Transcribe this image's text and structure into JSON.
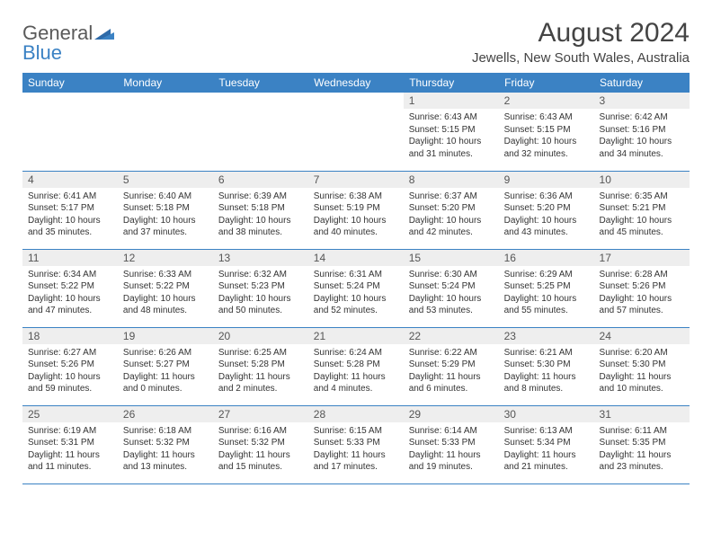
{
  "logo": {
    "line1": "General",
    "line2": "Blue"
  },
  "title": "August 2024",
  "location": "Jewells, New South Wales, Australia",
  "colors": {
    "accent": "#3b82c4",
    "header_bg": "#3b82c4",
    "header_text": "#ffffff",
    "daynum_bg": "#eeeeee",
    "text": "#333333",
    "logo_gray": "#5a5a5a"
  },
  "day_headers": [
    "Sunday",
    "Monday",
    "Tuesday",
    "Wednesday",
    "Thursday",
    "Friday",
    "Saturday"
  ],
  "weeks": [
    [
      {
        "n": "",
        "sr": "",
        "ss": "",
        "dl": ""
      },
      {
        "n": "",
        "sr": "",
        "ss": "",
        "dl": ""
      },
      {
        "n": "",
        "sr": "",
        "ss": "",
        "dl": ""
      },
      {
        "n": "",
        "sr": "",
        "ss": "",
        "dl": ""
      },
      {
        "n": "1",
        "sr": "Sunrise: 6:43 AM",
        "ss": "Sunset: 5:15 PM",
        "dl": "Daylight: 10 hours and 31 minutes."
      },
      {
        "n": "2",
        "sr": "Sunrise: 6:43 AM",
        "ss": "Sunset: 5:15 PM",
        "dl": "Daylight: 10 hours and 32 minutes."
      },
      {
        "n": "3",
        "sr": "Sunrise: 6:42 AM",
        "ss": "Sunset: 5:16 PM",
        "dl": "Daylight: 10 hours and 34 minutes."
      }
    ],
    [
      {
        "n": "4",
        "sr": "Sunrise: 6:41 AM",
        "ss": "Sunset: 5:17 PM",
        "dl": "Daylight: 10 hours and 35 minutes."
      },
      {
        "n": "5",
        "sr": "Sunrise: 6:40 AM",
        "ss": "Sunset: 5:18 PM",
        "dl": "Daylight: 10 hours and 37 minutes."
      },
      {
        "n": "6",
        "sr": "Sunrise: 6:39 AM",
        "ss": "Sunset: 5:18 PM",
        "dl": "Daylight: 10 hours and 38 minutes."
      },
      {
        "n": "7",
        "sr": "Sunrise: 6:38 AM",
        "ss": "Sunset: 5:19 PM",
        "dl": "Daylight: 10 hours and 40 minutes."
      },
      {
        "n": "8",
        "sr": "Sunrise: 6:37 AM",
        "ss": "Sunset: 5:20 PM",
        "dl": "Daylight: 10 hours and 42 minutes."
      },
      {
        "n": "9",
        "sr": "Sunrise: 6:36 AM",
        "ss": "Sunset: 5:20 PM",
        "dl": "Daylight: 10 hours and 43 minutes."
      },
      {
        "n": "10",
        "sr": "Sunrise: 6:35 AM",
        "ss": "Sunset: 5:21 PM",
        "dl": "Daylight: 10 hours and 45 minutes."
      }
    ],
    [
      {
        "n": "11",
        "sr": "Sunrise: 6:34 AM",
        "ss": "Sunset: 5:22 PM",
        "dl": "Daylight: 10 hours and 47 minutes."
      },
      {
        "n": "12",
        "sr": "Sunrise: 6:33 AM",
        "ss": "Sunset: 5:22 PM",
        "dl": "Daylight: 10 hours and 48 minutes."
      },
      {
        "n": "13",
        "sr": "Sunrise: 6:32 AM",
        "ss": "Sunset: 5:23 PM",
        "dl": "Daylight: 10 hours and 50 minutes."
      },
      {
        "n": "14",
        "sr": "Sunrise: 6:31 AM",
        "ss": "Sunset: 5:24 PM",
        "dl": "Daylight: 10 hours and 52 minutes."
      },
      {
        "n": "15",
        "sr": "Sunrise: 6:30 AM",
        "ss": "Sunset: 5:24 PM",
        "dl": "Daylight: 10 hours and 53 minutes."
      },
      {
        "n": "16",
        "sr": "Sunrise: 6:29 AM",
        "ss": "Sunset: 5:25 PM",
        "dl": "Daylight: 10 hours and 55 minutes."
      },
      {
        "n": "17",
        "sr": "Sunrise: 6:28 AM",
        "ss": "Sunset: 5:26 PM",
        "dl": "Daylight: 10 hours and 57 minutes."
      }
    ],
    [
      {
        "n": "18",
        "sr": "Sunrise: 6:27 AM",
        "ss": "Sunset: 5:26 PM",
        "dl": "Daylight: 10 hours and 59 minutes."
      },
      {
        "n": "19",
        "sr": "Sunrise: 6:26 AM",
        "ss": "Sunset: 5:27 PM",
        "dl": "Daylight: 11 hours and 0 minutes."
      },
      {
        "n": "20",
        "sr": "Sunrise: 6:25 AM",
        "ss": "Sunset: 5:28 PM",
        "dl": "Daylight: 11 hours and 2 minutes."
      },
      {
        "n": "21",
        "sr": "Sunrise: 6:24 AM",
        "ss": "Sunset: 5:28 PM",
        "dl": "Daylight: 11 hours and 4 minutes."
      },
      {
        "n": "22",
        "sr": "Sunrise: 6:22 AM",
        "ss": "Sunset: 5:29 PM",
        "dl": "Daylight: 11 hours and 6 minutes."
      },
      {
        "n": "23",
        "sr": "Sunrise: 6:21 AM",
        "ss": "Sunset: 5:30 PM",
        "dl": "Daylight: 11 hours and 8 minutes."
      },
      {
        "n": "24",
        "sr": "Sunrise: 6:20 AM",
        "ss": "Sunset: 5:30 PM",
        "dl": "Daylight: 11 hours and 10 minutes."
      }
    ],
    [
      {
        "n": "25",
        "sr": "Sunrise: 6:19 AM",
        "ss": "Sunset: 5:31 PM",
        "dl": "Daylight: 11 hours and 11 minutes."
      },
      {
        "n": "26",
        "sr": "Sunrise: 6:18 AM",
        "ss": "Sunset: 5:32 PM",
        "dl": "Daylight: 11 hours and 13 minutes."
      },
      {
        "n": "27",
        "sr": "Sunrise: 6:16 AM",
        "ss": "Sunset: 5:32 PM",
        "dl": "Daylight: 11 hours and 15 minutes."
      },
      {
        "n": "28",
        "sr": "Sunrise: 6:15 AM",
        "ss": "Sunset: 5:33 PM",
        "dl": "Daylight: 11 hours and 17 minutes."
      },
      {
        "n": "29",
        "sr": "Sunrise: 6:14 AM",
        "ss": "Sunset: 5:33 PM",
        "dl": "Daylight: 11 hours and 19 minutes."
      },
      {
        "n": "30",
        "sr": "Sunrise: 6:13 AM",
        "ss": "Sunset: 5:34 PM",
        "dl": "Daylight: 11 hours and 21 minutes."
      },
      {
        "n": "31",
        "sr": "Sunrise: 6:11 AM",
        "ss": "Sunset: 5:35 PM",
        "dl": "Daylight: 11 hours and 23 minutes."
      }
    ]
  ]
}
